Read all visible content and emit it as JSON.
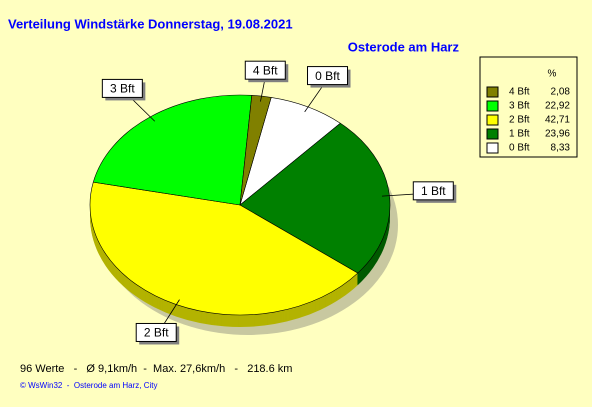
{
  "chart_data": {
    "type": "pie",
    "title": "Verteilung Windstärke  Donnerstag, 19.08.2021",
    "subtitle": "Osterode am Harz",
    "legend_header": "%",
    "categories": [
      "4 Bft",
      "3 Bft",
      "2 Bft",
      "1 Bft",
      "0 Bft"
    ],
    "values": [
      2.08,
      22.92,
      42.71,
      23.96,
      8.33
    ],
    "value_labels": [
      "2,08",
      "22,92",
      "42,71",
      "23,96",
      "8,33"
    ],
    "colors": [
      "#808000",
      "#00ff00",
      "#ffff00",
      "#008000",
      "#ffffff"
    ],
    "footer": "96 Werte   -   Ø 9,1km/h  -  Max. 27,6km/h   -   218.6 km",
    "copyright": "© WsWin32  -  Osterode am Harz, City",
    "legend": "upper right"
  }
}
